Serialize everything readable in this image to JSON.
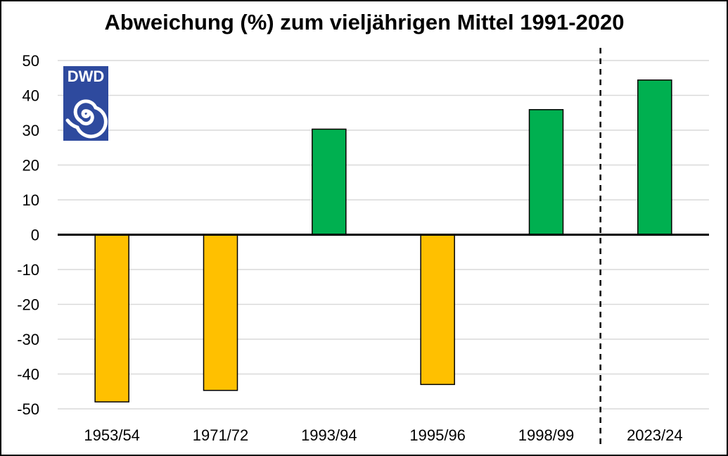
{
  "chart_data": {
    "type": "bar",
    "title": "Abweichung (%) zum vieljährigen Mittel 1991-2020",
    "xlabel": "",
    "ylabel": "",
    "categories": [
      "1953/54",
      "1971/72",
      "1993/94",
      "1995/96",
      "1998/99",
      "2023/24"
    ],
    "values": [
      -48,
      -44.7,
      30.3,
      -43,
      35.9,
      44.4
    ],
    "ylim": [
      -50,
      50
    ],
    "yticks": [
      50,
      40,
      30,
      20,
      10,
      0,
      -10,
      -20,
      -30,
      -40,
      -50
    ],
    "grid": true,
    "legend": "none",
    "colors": {
      "positive": "#00B050",
      "negative": "#FFC000",
      "bar_border": "#000000",
      "grid": "#D9D9D9",
      "zero_line": "#000000",
      "separator": "#000000"
    },
    "separator_between": [
      "1998/99",
      "2023/24"
    ]
  },
  "logo": {
    "text": "DWD",
    "icon": "dwd-spiral-logo-icon",
    "background": "#2E4A9E"
  }
}
